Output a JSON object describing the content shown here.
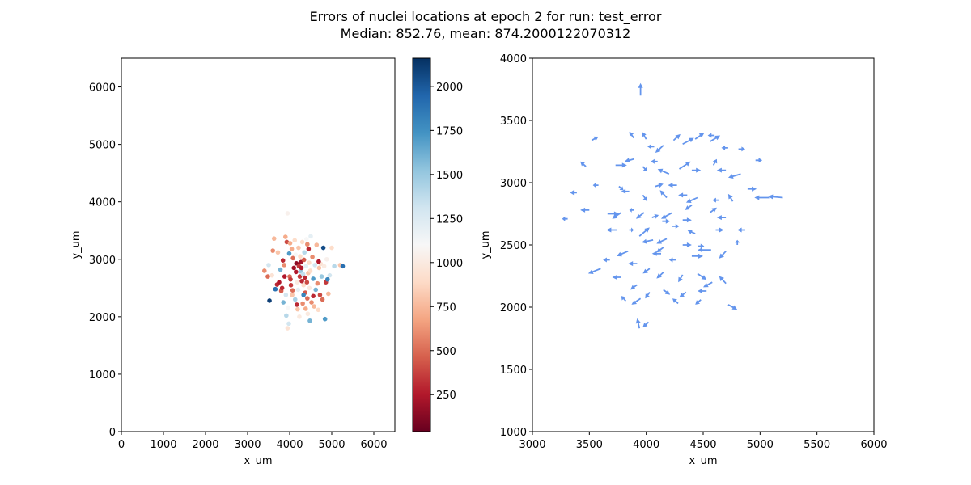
{
  "figure": {
    "title_line1": "Errors of nuclei locations at epoch 2 for run: test_error",
    "title_line2": "Median: 852.76, mean: 874.2000122070312"
  },
  "chart_data": [
    {
      "type": "scatter",
      "xlabel": "x_um",
      "ylabel": "y_um",
      "xlim": [
        0,
        6500
      ],
      "ylim": [
        0,
        6500
      ],
      "xticks": [
        0,
        1000,
        2000,
        3000,
        4000,
        5000,
        6000
      ],
      "yticks": [
        0,
        1000,
        2000,
        3000,
        4000,
        5000,
        6000
      ],
      "grid": false,
      "colormap": "RdBu",
      "colorbar": {
        "range": [
          40,
          2160
        ],
        "ticks": [
          250,
          500,
          750,
          1000,
          1250,
          1500,
          1750,
          2000
        ]
      },
      "colors": [
        "#67001f",
        "#b2182b",
        "#d6604d",
        "#f4a582",
        "#fddbc7",
        "#f7f7f7",
        "#d1e5f0",
        "#92c5de",
        "#4393c3",
        "#2166ac",
        "#053061"
      ],
      "points": [
        [
          3520,
          2280,
          2100
        ],
        [
          3950,
          3800,
          1050
        ],
        [
          3630,
          3360,
          750
        ],
        [
          3580,
          2720,
          950
        ],
        [
          3480,
          2700,
          500
        ],
        [
          3600,
          3150,
          600
        ],
        [
          3700,
          2560,
          300
        ],
        [
          3750,
          2600,
          250
        ],
        [
          3800,
          2450,
          450
        ],
        [
          3820,
          2500,
          300
        ],
        [
          3850,
          2250,
          1600
        ],
        [
          3870,
          2900,
          600
        ],
        [
          3900,
          3390,
          700
        ],
        [
          3920,
          2020,
          1400
        ],
        [
          3930,
          3300,
          400
        ],
        [
          3950,
          1800,
          950
        ],
        [
          3980,
          1880,
          1300
        ],
        [
          3990,
          3100,
          1700
        ],
        [
          4000,
          2700,
          500
        ],
        [
          4020,
          2650,
          350
        ],
        [
          4030,
          2550,
          350
        ],
        [
          4050,
          3180,
          700
        ],
        [
          4060,
          2380,
          800
        ],
        [
          4080,
          3020,
          500
        ],
        [
          4100,
          2850,
          200
        ],
        [
          4120,
          3330,
          900
        ],
        [
          4130,
          2300,
          1450
        ],
        [
          4150,
          2780,
          250
        ],
        [
          4160,
          2930,
          150
        ],
        [
          4180,
          2600,
          1000
        ],
        [
          4190,
          2130,
          800
        ],
        [
          4200,
          2470,
          1200
        ],
        [
          4210,
          3200,
          800
        ],
        [
          4220,
          2880,
          350
        ],
        [
          4230,
          2000,
          1000
        ],
        [
          4240,
          2700,
          350
        ],
        [
          4250,
          3050,
          900
        ],
        [
          4260,
          2790,
          1500
        ],
        [
          4270,
          2950,
          200
        ],
        [
          4280,
          2850,
          250
        ],
        [
          4290,
          2620,
          300
        ],
        [
          4300,
          3300,
          900
        ],
        [
          4310,
          2230,
          600
        ],
        [
          4320,
          2740,
          1350
        ],
        [
          4330,
          2550,
          900
        ],
        [
          4340,
          2990,
          450
        ],
        [
          4350,
          3120,
          1400
        ],
        [
          4360,
          2680,
          300
        ],
        [
          4370,
          2420,
          450
        ],
        [
          4380,
          2140,
          700
        ],
        [
          4390,
          2880,
          1200
        ],
        [
          4400,
          3350,
          1100
        ],
        [
          4410,
          2600,
          400
        ],
        [
          4420,
          2320,
          500
        ],
        [
          4430,
          2050,
          1000
        ],
        [
          4440,
          2760,
          800
        ],
        [
          4450,
          3180,
          300
        ],
        [
          4460,
          2940,
          900
        ],
        [
          4470,
          2500,
          1000
        ],
        [
          4480,
          1930,
          1600
        ],
        [
          4490,
          2800,
          900
        ],
        [
          4500,
          3400,
          1200
        ],
        [
          4520,
          2250,
          600
        ],
        [
          4540,
          3040,
          600
        ],
        [
          4560,
          2660,
          1700
        ],
        [
          4580,
          2180,
          750
        ],
        [
          4600,
          2900,
          1300
        ],
        [
          4620,
          2470,
          1600
        ],
        [
          4640,
          3250,
          750
        ],
        [
          4660,
          2580,
          600
        ],
        [
          4680,
          2120,
          900
        ],
        [
          4700,
          2850,
          800
        ],
        [
          4720,
          2380,
          400
        ],
        [
          4740,
          2920,
          950
        ],
        [
          4760,
          2700,
          1500
        ],
        [
          4780,
          2300,
          500
        ],
        [
          4800,
          3200,
          2050
        ],
        [
          4820,
          2880,
          1000
        ],
        [
          4840,
          1960,
          1700
        ],
        [
          4860,
          2600,
          350
        ],
        [
          4880,
          3000,
          1050
        ],
        [
          4900,
          2650,
          1800
        ],
        [
          4920,
          2400,
          750
        ],
        [
          4950,
          2720,
          1300
        ],
        [
          5000,
          3200,
          900
        ],
        [
          5060,
          2880,
          1400
        ],
        [
          5200,
          2900,
          800
        ],
        [
          5260,
          2880,
          1900
        ],
        [
          3400,
          2800,
          600
        ],
        [
          3500,
          2900,
          1300
        ],
        [
          3660,
          2480,
          1900
        ],
        [
          3720,
          3120,
          800
        ],
        [
          3780,
          2820,
          1600
        ],
        [
          3840,
          2980,
          300
        ],
        [
          3880,
          2700,
          250
        ],
        [
          3910,
          2380,
          1300
        ],
        [
          3960,
          2160,
          1100
        ],
        [
          4010,
          3280,
          700
        ],
        [
          4070,
          2460,
          500
        ],
        [
          4140,
          3080,
          1100
        ],
        [
          4170,
          2210,
          300
        ],
        [
          4330,
          2380,
          1800
        ],
        [
          4420,
          3260,
          600
        ],
        [
          4560,
          2360,
          300
        ],
        [
          4690,
          2960,
          250
        ]
      ]
    },
    {
      "type": "quiver",
      "xlabel": "x_um",
      "ylabel": "y_um",
      "xlim": [
        3000,
        6000
      ],
      "ylim": [
        1000,
        4000
      ],
      "xticks": [
        3000,
        3500,
        4000,
        4500,
        5000,
        5500,
        6000
      ],
      "yticks": [
        1000,
        1500,
        2000,
        2500,
        3000,
        3500,
        4000
      ],
      "grid": false,
      "arrow_color": "#6495ed",
      "arrows": [
        [
          3950,
          3700,
          0,
          100
        ],
        [
          3520,
          3340,
          60,
          30
        ],
        [
          3890,
          3360,
          -40,
          50
        ],
        [
          4000,
          3350,
          -40,
          60
        ],
        [
          4070,
          3290,
          -60,
          0
        ],
        [
          4150,
          3300,
          -70,
          -60
        ],
        [
          4240,
          3340,
          60,
          50
        ],
        [
          4320,
          3310,
          100,
          50
        ],
        [
          4430,
          3350,
          80,
          50
        ],
        [
          4560,
          3330,
          90,
          50
        ],
        [
          4600,
          3380,
          -60,
          0
        ],
        [
          4720,
          3280,
          -60,
          0
        ],
        [
          4810,
          3270,
          60,
          0
        ],
        [
          3470,
          3130,
          -50,
          40
        ],
        [
          3730,
          3140,
          100,
          0
        ],
        [
          3890,
          3190,
          -80,
          -20
        ],
        [
          3970,
          3130,
          40,
          -40
        ],
        [
          4100,
          3170,
          -60,
          0
        ],
        [
          4200,
          3070,
          -100,
          40
        ],
        [
          4290,
          3110,
          100,
          60
        ],
        [
          4400,
          3100,
          80,
          0
        ],
        [
          4590,
          3140,
          30,
          50
        ],
        [
          4700,
          3100,
          -80,
          0
        ],
        [
          4830,
          3070,
          -110,
          -30
        ],
        [
          4960,
          3180,
          60,
          0
        ],
        [
          3390,
          2920,
          -60,
          0
        ],
        [
          3580,
          2980,
          -50,
          0
        ],
        [
          3760,
          2970,
          40,
          -30
        ],
        [
          3850,
          2930,
          -70,
          0
        ],
        [
          3970,
          2900,
          40,
          -50
        ],
        [
          4080,
          2970,
          70,
          20
        ],
        [
          4180,
          2880,
          -60,
          60
        ],
        [
          4270,
          2980,
          -80,
          0
        ],
        [
          4360,
          2900,
          -80,
          0
        ],
        [
          4450,
          2880,
          -100,
          -40
        ],
        [
          4640,
          2860,
          -60,
          0
        ],
        [
          4760,
          2850,
          -40,
          60
        ],
        [
          4890,
          2950,
          80,
          0
        ],
        [
          5080,
          2880,
          -130,
          0
        ],
        [
          5200,
          2880,
          -130,
          10
        ],
        [
          3500,
          2780,
          -80,
          0
        ],
        [
          3660,
          2750,
          100,
          0
        ],
        [
          3780,
          2760,
          -80,
          -50
        ],
        [
          3890,
          2780,
          -40,
          0
        ],
        [
          3980,
          2760,
          -70,
          -50
        ],
        [
          4050,
          2720,
          60,
          20
        ],
        [
          4140,
          2690,
          70,
          0
        ],
        [
          4230,
          2760,
          -100,
          -50
        ],
        [
          4320,
          2700,
          80,
          0
        ],
        [
          4400,
          2820,
          -60,
          -40
        ],
        [
          4560,
          2760,
          60,
          40
        ],
        [
          4700,
          2720,
          -80,
          0
        ],
        [
          4870,
          2620,
          -70,
          0
        ],
        [
          3310,
          2710,
          -50,
          0
        ],
        [
          3740,
          2620,
          -90,
          0
        ],
        [
          3850,
          2620,
          40,
          0
        ],
        [
          3940,
          2570,
          90,
          70
        ],
        [
          4060,
          2540,
          -100,
          -20
        ],
        [
          4180,
          2550,
          -90,
          -40
        ],
        [
          4320,
          2500,
          80,
          0
        ],
        [
          4450,
          2490,
          60,
          0
        ],
        [
          4570,
          2460,
          -120,
          0
        ],
        [
          4700,
          2450,
          -60,
          -60
        ],
        [
          3680,
          2380,
          -60,
          0
        ],
        [
          3840,
          2450,
          -100,
          -40
        ],
        [
          3920,
          2350,
          -80,
          0
        ],
        [
          4030,
          2310,
          -60,
          -40
        ],
        [
          4150,
          2280,
          -60,
          -50
        ],
        [
          4320,
          2260,
          -40,
          -60
        ],
        [
          4450,
          2270,
          80,
          -50
        ],
        [
          4580,
          2200,
          -80,
          -40
        ],
        [
          4700,
          2190,
          -60,
          60
        ],
        [
          3600,
          2310,
          -110,
          -40
        ],
        [
          3780,
          2240,
          -80,
          0
        ],
        [
          3920,
          2180,
          -60,
          -40
        ],
        [
          4030,
          2120,
          -40,
          -50
        ],
        [
          4150,
          2140,
          60,
          -40
        ],
        [
          4350,
          2120,
          -60,
          -40
        ],
        [
          4530,
          2130,
          -80,
          0
        ],
        [
          4720,
          2020,
          80,
          -40
        ],
        [
          3820,
          2050,
          -40,
          40
        ],
        [
          3950,
          2070,
          -80,
          -50
        ],
        [
          4280,
          2030,
          -50,
          40
        ],
        [
          4480,
          2060,
          -50,
          -40
        ],
        [
          3940,
          1830,
          -20,
          80
        ],
        [
          4020,
          1880,
          -50,
          -40
        ],
        [
          4130,
          2430,
          -80,
          0
        ],
        [
          4260,
          2380,
          -60,
          0
        ],
        [
          4430,
          2590,
          -70,
          30
        ],
        [
          4610,
          2620,
          70,
          0
        ],
        [
          4800,
          2500,
          0,
          40
        ],
        [
          4230,
          2650,
          60,
          0
        ],
        [
          4150,
          2480,
          -60,
          -40
        ],
        [
          4400,
          2410,
          100,
          0
        ]
      ]
    }
  ]
}
